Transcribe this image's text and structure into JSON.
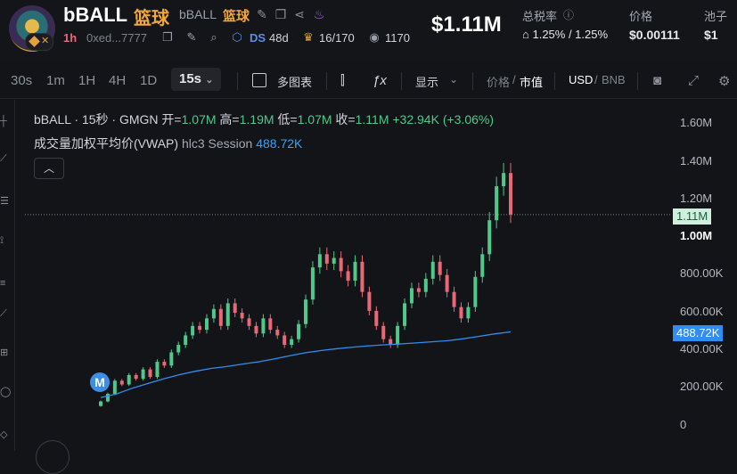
{
  "header": {
    "symbol": "bBALL",
    "name_cn": "篮球",
    "sub_symbol": "bBALL",
    "sub_name_cn": "篮球",
    "age": "1h",
    "address": "0xed...7777",
    "ds_label": "DS",
    "ds_value": "48d",
    "holders": "16/170",
    "views": "1170",
    "price": "$1.11M",
    "stats": [
      {
        "label": "总税率",
        "value": "1.25% / 1.25%"
      },
      {
        "label": "价格",
        "value": "$0.00111"
      },
      {
        "label": "池子",
        "value": "$1"
      }
    ]
  },
  "toolbar": {
    "intervals": [
      "30s",
      "1m",
      "1H",
      "4H",
      "1D"
    ],
    "selected_interval": "15s",
    "multi_chart": "多图表",
    "display": "显示",
    "price_label": "价格",
    "mcap_label": "市值",
    "currency_usd": "USD",
    "currency_bnb": "BNB"
  },
  "legend": {
    "title": "bBALL · 15秒 · GMGN",
    "open_label": "开=",
    "open": "1.07M",
    "high_label": "高=",
    "high": "1.19M",
    "low_label": "低=",
    "low": "1.07M",
    "close_label": "收=",
    "close": "1.11M",
    "change": "+32.94K (+3.06%)",
    "vwap_label": "成交量加权平均价(VWAP)",
    "vwap_params": "hlc3 Session",
    "vwap_value": "488.72K"
  },
  "y_axis": {
    "labels": [
      "1.60M",
      "1.40M",
      "1.20M",
      "1.00M",
      "800.00K",
      "600.00K",
      "400.00K",
      "200.00K",
      "0"
    ],
    "price_tag": "1.11M",
    "vwap_tag": "488.72K"
  },
  "marker": "M",
  "chart_data": {
    "type": "candlestick",
    "interval": "15s",
    "y_range": [
      0,
      1600000
    ],
    "current_price": 1110000,
    "vwap_current": 488720,
    "candles_close": [
      120000,
      160000,
      230000,
      210000,
      260000,
      240000,
      290000,
      250000,
      330000,
      310000,
      380000,
      420000,
      470000,
      520000,
      500000,
      560000,
      610000,
      520000,
      640000,
      590000,
      560000,
      520000,
      480000,
      560000,
      500000,
      470000,
      420000,
      450000,
      530000,
      660000,
      830000,
      900000,
      850000,
      880000,
      810000,
      760000,
      860000,
      700000,
      600000,
      520000,
      450000,
      420000,
      520000,
      640000,
      720000,
      700000,
      770000,
      860000,
      790000,
      700000,
      620000,
      560000,
      620000,
      780000,
      900000,
      1080000,
      1260000,
      1330000,
      1110000
    ],
    "vwap_close": [
      140000,
      160000,
      190000,
      215000,
      240000,
      262000,
      280000,
      295000,
      305000,
      318000,
      330000,
      345000,
      362000,
      378000,
      390000,
      400000,
      408000,
      415000,
      420000,
      425000,
      430000,
      436000,
      442000,
      452000,
      465000,
      478000,
      488720
    ],
    "colors": {
      "up": "#4fc88b",
      "down": "#e86877",
      "vwap": "#2f8ef0",
      "price_line": "#9aa0aa"
    }
  }
}
